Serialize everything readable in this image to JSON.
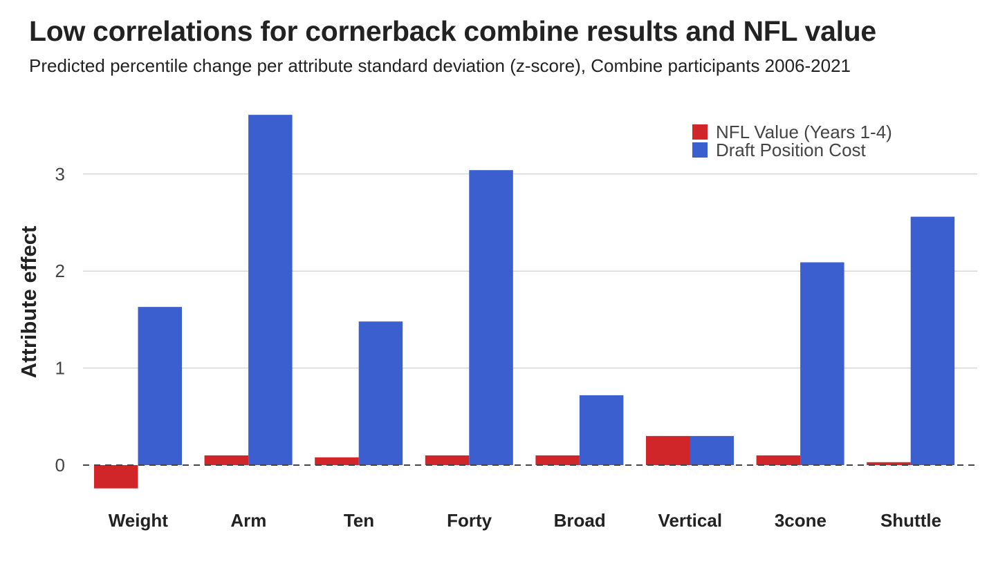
{
  "chart_data": {
    "type": "bar",
    "title": "Low correlations for cornerback combine results and NFL value",
    "subtitle": "Predicted percentile change per attribute standard deviation (z-score), Combine participants 2006-2021",
    "ylabel": "Attribute effect",
    "xlabel": "",
    "categories": [
      "Weight",
      "Arm",
      "Ten",
      "Forty",
      "Broad",
      "Vertical",
      "3cone",
      "Shuttle"
    ],
    "series": [
      {
        "name": "NFL Value (Years 1-4)",
        "color": "#d0262a",
        "values": [
          -0.24,
          0.1,
          0.08,
          0.1,
          0.1,
          0.3,
          0.1,
          0.03
        ]
      },
      {
        "name": "Draft Position Cost",
        "color": "#3b5fce",
        "values": [
          1.63,
          3.61,
          1.48,
          3.04,
          0.72,
          0.3,
          2.09,
          2.56
        ]
      }
    ],
    "ylim": [
      -0.4,
      3.6
    ],
    "yticks": [
      "0",
      "1",
      "2",
      "3"
    ],
    "grid": true,
    "zero_line": "dashed",
    "legend_position": "top-right"
  }
}
